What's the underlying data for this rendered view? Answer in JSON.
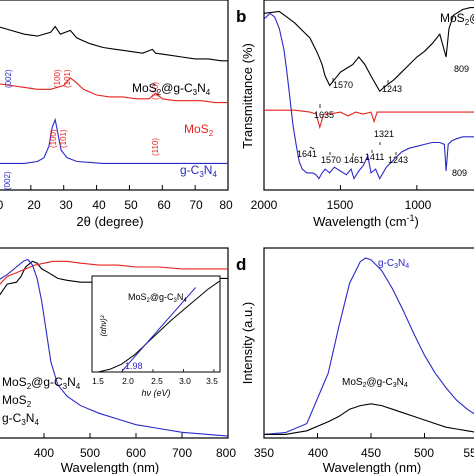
{
  "colors": {
    "black": "#000000",
    "red": "#e8221e",
    "blue": "#2a2ac8"
  },
  "panels": {
    "a": {
      "label": "",
      "xlabel": "2θ (degree)",
      "ticks": [
        "0",
        "20",
        "30",
        "40",
        "50",
        "60",
        "70",
        "80"
      ]
    },
    "b": {
      "label": "b",
      "xlabel": "Wavelength (cm",
      "xlabel_sup": "-1",
      "xlabel_end": ")",
      "ylabel": "Transmittance (%)",
      "ticks": [
        "2000",
        "1500",
        "1000"
      ]
    },
    "c": {
      "label": "",
      "xlabel": "Wavelength (nm)",
      "ticks": [
        "400",
        "500",
        "600",
        "700",
        "800"
      ]
    },
    "d": {
      "label": "d",
      "xlabel": "Wavelength (nm)",
      "ylabel": "Intensity (a.u.)",
      "ticks": [
        "350",
        "400",
        "450",
        "500",
        "55"
      ]
    }
  },
  "chart_data": [
    {
      "type": "line",
      "panel": "a",
      "xlabel": "2θ (degree)",
      "xlim": [
        10,
        80
      ],
      "series": [
        {
          "name": "MoS₂@g-C₃N₄",
          "color": "#000000",
          "x": [
            10,
            14,
            18,
            22,
            26,
            27.4,
            29,
            32,
            34,
            38,
            42,
            46,
            50,
            54,
            57,
            58,
            62,
            66,
            70,
            74,
            78,
            80
          ],
          "y": [
            0.86,
            0.84,
            0.82,
            0.81,
            0.83,
            0.86,
            0.82,
            0.84,
            0.8,
            0.77,
            0.75,
            0.74,
            0.73,
            0.72,
            0.74,
            0.72,
            0.71,
            0.7,
            0.69,
            0.69,
            0.68,
            0.68
          ]
        },
        {
          "name": "MoS₂",
          "color": "#e8221e",
          "x": [
            10,
            14,
            18,
            22,
            26,
            30,
            32,
            33.5,
            36,
            40,
            44,
            48,
            52,
            56,
            58,
            60,
            64,
            68,
            72,
            76,
            80
          ],
          "y": [
            0.56,
            0.55,
            0.54,
            0.53,
            0.53,
            0.55,
            0.59,
            0.57,
            0.53,
            0.5,
            0.49,
            0.49,
            0.48,
            0.48,
            0.51,
            0.48,
            0.47,
            0.47,
            0.47,
            0.46,
            0.46
          ]
        },
        {
          "name": "g-C₃N₄",
          "color": "#2a2ac8",
          "x": [
            10,
            14,
            18,
            20,
            22,
            24,
            25.5,
            26.5,
            27.4,
            28.2,
            29.2,
            31,
            34,
            38,
            42,
            48,
            56,
            64,
            72,
            80
          ],
          "y": [
            0.14,
            0.14,
            0.14,
            0.145,
            0.15,
            0.17,
            0.23,
            0.33,
            0.37,
            0.3,
            0.21,
            0.17,
            0.15,
            0.145,
            0.14,
            0.14,
            0.14,
            0.14,
            0.14,
            0.14
          ]
        }
      ],
      "annotations": [
        {
          "text": "(002)",
          "color": "#2a2ac8",
          "x": 27.4
        },
        {
          "text": "(002)",
          "color": "#2a2ac8",
          "x": 27.4
        },
        {
          "text": "(100)",
          "color": "#e8221e",
          "x": 32.5
        },
        {
          "text": "(101)",
          "color": "#e8221e",
          "x": 34.5
        },
        {
          "text": "(100)",
          "color": "#e8221e",
          "x": 32.5
        },
        {
          "text": "(101)",
          "color": "#e8221e",
          "x": 34.5
        },
        {
          "text": "(110)",
          "color": "#e8221e",
          "x": 58
        },
        {
          "text": "(110)",
          "color": "#e8221e",
          "x": 58
        }
      ],
      "legend": [
        "MoS₂@g-C₃N₄",
        "MoS₂",
        "g-C₃N₄"
      ]
    },
    {
      "type": "line",
      "panel": "b",
      "xlabel": "Wavelength (cm-1)",
      "ylabel": "Transmittance (%)",
      "xlim": [
        2000,
        600
      ],
      "series": [
        {
          "name": "MoS₂@g-C₃N₄",
          "color": "#000000",
          "x": [
            2000,
            1900,
            1850,
            1800,
            1750,
            1700,
            1650,
            1620,
            1600,
            1570,
            1540,
            1500,
            1460,
            1420,
            1380,
            1340,
            1300,
            1243,
            1200,
            1150,
            1100,
            1050,
            1000,
            950,
            900,
            850,
            809,
            790,
            760,
            700,
            650,
            600
          ],
          "y": [
            0.93,
            0.94,
            0.91,
            0.88,
            0.84,
            0.8,
            0.72,
            0.66,
            0.6,
            0.55,
            0.58,
            0.62,
            0.64,
            0.66,
            0.7,
            0.66,
            0.6,
            0.52,
            0.55,
            0.58,
            0.62,
            0.66,
            0.7,
            0.73,
            0.77,
            0.82,
            0.7,
            0.85,
            0.92,
            0.95,
            0.96,
            0.96
          ]
        },
        {
          "name": "MoS₂",
          "color": "#e8221e",
          "x": [
            2000,
            1900,
            1800,
            1700,
            1660,
            1635,
            1610,
            1570,
            1500,
            1450,
            1400,
            1350,
            1300,
            1280,
            1260,
            1200,
            1100,
            1000,
            900,
            800,
            700,
            600
          ],
          "y": [
            0.42,
            0.42,
            0.42,
            0.41,
            0.4,
            0.33,
            0.4,
            0.4,
            0.41,
            0.39,
            0.41,
            0.4,
            0.41,
            0.36,
            0.41,
            0.41,
            0.41,
            0.41,
            0.41,
            0.41,
            0.41,
            0.41
          ]
        },
        {
          "name": "g-C₃N₄",
          "color": "#2a2ac8",
          "x": [
            2000,
            1960,
            1930,
            1900,
            1870,
            1850,
            1830,
            1810,
            1790,
            1770,
            1750,
            1720,
            1700,
            1680,
            1660,
            1641,
            1620,
            1600,
            1570,
            1540,
            1500,
            1461,
            1430,
            1411,
            1380,
            1350,
            1321,
            1300,
            1270,
            1243,
            1200,
            1150,
            1100,
            1050,
            1000,
            950,
            900,
            850,
            820,
            809,
            795,
            770,
            740,
            700,
            650,
            600
          ],
          "y": [
            0.9,
            0.93,
            0.91,
            0.85,
            0.74,
            0.62,
            0.48,
            0.34,
            0.24,
            0.15,
            0.11,
            0.09,
            0.09,
            0.09,
            0.08,
            0.06,
            0.09,
            0.11,
            0.09,
            0.12,
            0.1,
            0.08,
            0.11,
            0.06,
            0.1,
            0.13,
            0.18,
            0.09,
            0.11,
            0.06,
            0.12,
            0.16,
            0.2,
            0.22,
            0.23,
            0.24,
            0.25,
            0.25,
            0.24,
            0.1,
            0.24,
            0.26,
            0.27,
            0.28,
            0.28,
            0.28
          ]
        }
      ],
      "annotations": [
        "1570",
        "1243",
        "809",
        "1635",
        "1641",
        "1570",
        "1461",
        "1411",
        "1321",
        "1243",
        "809"
      ]
    },
    {
      "type": "line",
      "panel": "c",
      "xlabel": "Wavelength (nm)",
      "xlim": [
        300,
        800
      ],
      "series": [
        {
          "name": "MoS₂@g-C₃N₄",
          "color": "#000000",
          "x": [
            300,
            320,
            340,
            350,
            360,
            375,
            385,
            395,
            410,
            430,
            450,
            480,
            520,
            560,
            600,
            650,
            700,
            750,
            800
          ],
          "y": [
            0.74,
            0.81,
            0.82,
            0.85,
            0.9,
            0.93,
            0.92,
            0.89,
            0.87,
            0.84,
            0.83,
            0.82,
            0.82,
            0.83,
            0.83,
            0.83,
            0.83,
            0.84,
            0.84
          ]
        },
        {
          "name": "MoS₂",
          "color": "#e8221e",
          "x": [
            300,
            320,
            340,
            360,
            380,
            400,
            420,
            450,
            480,
            520,
            560,
            600,
            650,
            700,
            750,
            800
          ],
          "y": [
            0.8,
            0.85,
            0.87,
            0.89,
            0.91,
            0.92,
            0.93,
            0.93,
            0.92,
            0.91,
            0.91,
            0.9,
            0.9,
            0.89,
            0.89,
            0.89
          ]
        },
        {
          "name": "g-C₃N₄",
          "color": "#2a2ac8",
          "x": [
            300,
            320,
            340,
            355,
            365,
            375,
            385,
            395,
            405,
            415,
            430,
            450,
            480,
            520,
            560,
            600,
            650,
            700,
            750,
            800
          ],
          "y": [
            0.83,
            0.86,
            0.9,
            0.93,
            0.94,
            0.91,
            0.84,
            0.72,
            0.56,
            0.4,
            0.28,
            0.22,
            0.17,
            0.13,
            0.1,
            0.07,
            0.05,
            0.03,
            0.02,
            0.01
          ]
        }
      ],
      "inset": {
        "xlabel": "hν (eV)",
        "ylabel": "(αhν)²",
        "ticks": [
          "1.5",
          "2.0",
          "2.5",
          "3.0",
          "3.5"
        ],
        "xlim": [
          1.5,
          3.6
        ],
        "label": "MoS₂@g-C₃N₄",
        "value": "1.98",
        "curve": {
          "x": [
            1.6,
            1.8,
            1.98,
            2.2,
            2.5,
            2.8,
            3.1,
            3.4,
            3.6
          ],
          "y": [
            0.0,
            0.03,
            0.08,
            0.18,
            0.36,
            0.54,
            0.7,
            0.86,
            0.95
          ]
        },
        "fit": {
          "x": [
            1.98,
            3.2
          ],
          "y": [
            0.0,
            0.88
          ]
        }
      },
      "legend": [
        "MoS₂@g-C₃N₄",
        "MoS₂",
        "g-C₃N₄"
      ]
    },
    {
      "type": "line",
      "panel": "d",
      "xlabel": "Wavelength (nm)",
      "ylabel": "Intensity (a.u.)",
      "xlim": [
        350,
        550
      ],
      "series": [
        {
          "name": "g-C₃N₄",
          "color": "#2a2ac8",
          "x": [
            350,
            370,
            390,
            410,
            420,
            430,
            440,
            445,
            450,
            460,
            470,
            480,
            490,
            500,
            510,
            520,
            530,
            540,
            550
          ],
          "y": [
            0.02,
            0.03,
            0.08,
            0.36,
            0.62,
            0.86,
            0.98,
            1.0,
            0.99,
            0.93,
            0.83,
            0.71,
            0.58,
            0.46,
            0.36,
            0.28,
            0.21,
            0.16,
            0.12
          ]
        },
        {
          "name": "MoS₂@g-C₃N₄",
          "color": "#000000",
          "x": [
            350,
            370,
            390,
            410,
            420,
            430,
            440,
            450,
            460,
            470,
            480,
            490,
            500,
            510,
            520,
            530,
            540,
            550
          ],
          "y": [
            0.02,
            0.02,
            0.04,
            0.09,
            0.12,
            0.16,
            0.18,
            0.19,
            0.18,
            0.16,
            0.14,
            0.12,
            0.1,
            0.08,
            0.06,
            0.05,
            0.04,
            0.03
          ]
        }
      ],
      "legend": [
        "g-C₃N₄",
        "MoS₂@g-C₃N₄"
      ]
    }
  ]
}
